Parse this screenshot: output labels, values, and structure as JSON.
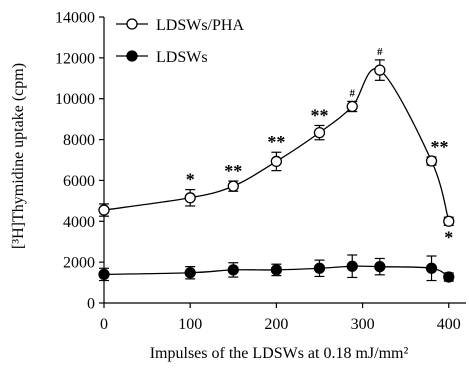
{
  "chart_data": {
    "type": "line",
    "title": "",
    "xlabel": "Impulses of the LDSWs at 0.18 mJ/mm²",
    "ylabel": "[³H]Thymidine uptake (cpm)",
    "xlim": [
      0,
      420
    ],
    "ylim": [
      0,
      14000
    ],
    "xticks": [
      0,
      100,
      200,
      300,
      400
    ],
    "xtick_labels": [
      "0",
      "100",
      "200",
      "300",
      "400"
    ],
    "yticks": [
      0,
      2000,
      4000,
      6000,
      8000,
      10000,
      12000,
      14000
    ],
    "ytick_labels": [
      "0",
      "2000",
      "4000",
      "6000",
      "8000",
      "10000",
      "12000",
      "14000"
    ],
    "grid": false,
    "legend_position": "top-left",
    "series": [
      {
        "name": "LDSWs/PHA",
        "marker": "open-circle",
        "x": [
          0,
          100,
          150,
          200,
          250,
          288,
          320,
          380,
          400
        ],
        "y": [
          4550,
          5150,
          5720,
          6930,
          8340,
          9620,
          11400,
          6950,
          4000
        ],
        "err": [
          300,
          400,
          250,
          450,
          350,
          250,
          500,
          200,
          200
        ],
        "annotations": [
          "",
          "*",
          "**",
          "**",
          "**",
          "#",
          "#",
          "**",
          "*"
        ]
      },
      {
        "name": "LDSWs",
        "marker": "filled-circle",
        "x": [
          0,
          100,
          150,
          200,
          250,
          288,
          320,
          380,
          400
        ],
        "y": [
          1400,
          1480,
          1620,
          1620,
          1700,
          1800,
          1780,
          1700,
          1270
        ],
        "err": [
          300,
          300,
          350,
          280,
          400,
          550,
          400,
          600,
          200
        ]
      }
    ]
  }
}
